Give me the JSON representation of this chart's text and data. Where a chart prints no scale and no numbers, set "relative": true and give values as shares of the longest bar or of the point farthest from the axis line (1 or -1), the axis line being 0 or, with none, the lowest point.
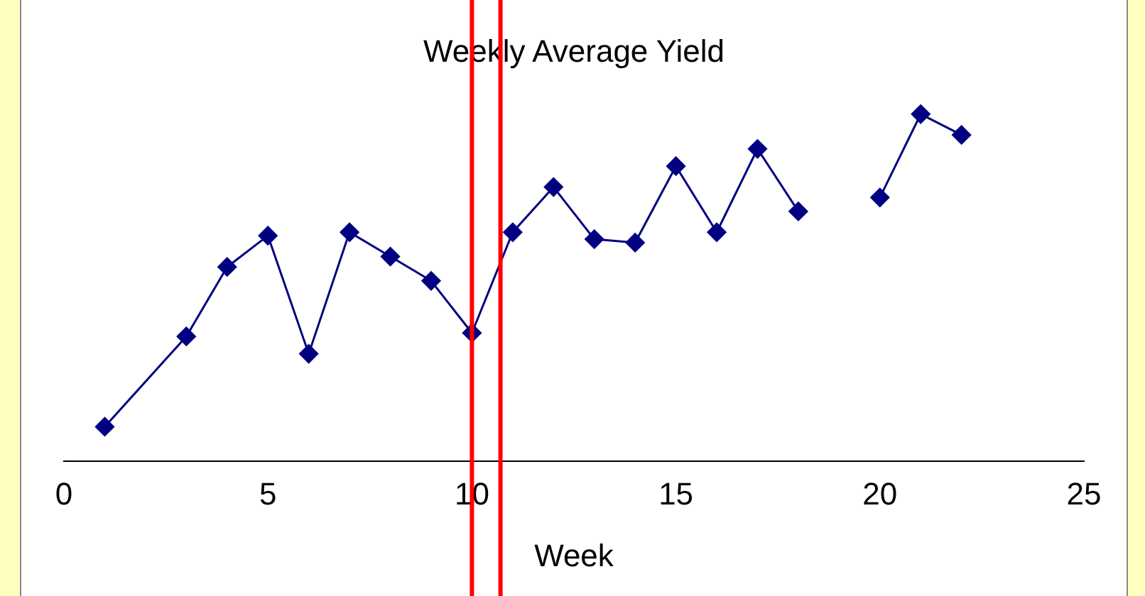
{
  "chart_data": {
    "type": "line",
    "title": "Weekly Average Yield",
    "xlabel": "Week",
    "relative": true,
    "x": [
      1,
      3,
      4,
      5,
      6,
      7,
      8,
      9,
      10,
      11,
      12,
      13,
      14,
      15,
      16,
      17,
      18,
      19,
      20,
      21,
      22
    ],
    "series": [
      {
        "color": "#000080",
        "values": [
          0.1,
          0.36,
          0.56,
          0.65,
          0.31,
          0.66,
          0.59,
          0.52,
          0.37,
          0.66,
          0.79,
          0.64,
          0.63,
          0.85,
          0.66,
          0.9,
          0.72,
          null,
          0.76,
          1,
          0.94
        ]
      }
    ],
    "xlim": [
      0,
      25
    ],
    "xticks": [
      0,
      5,
      10,
      15,
      20,
      25
    ],
    "grid": false,
    "marker": "diamond",
    "line_style": "solid",
    "legend": false,
    "ref_lines": [
      {
        "axis": "x",
        "value": 10,
        "color": "#ff0000"
      },
      {
        "axis": "x",
        "value": 10.7,
        "color": "#ff0000"
      }
    ]
  }
}
